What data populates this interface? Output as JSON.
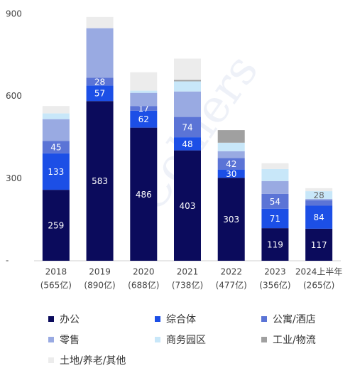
{
  "chart_data": {
    "type": "stacked_bar",
    "watermark": "Colliers",
    "categories": [
      "2018",
      "2019",
      "2020",
      "2021",
      "2022",
      "2023",
      "2024上半年"
    ],
    "category_notes": [
      "(565亿)",
      "(890亿)",
      "(688亿)",
      "(738亿)",
      "(477亿)",
      "(356亿)",
      "(265亿)"
    ],
    "ylim": [
      0,
      900
    ],
    "yticks": [
      {
        "value": 0,
        "label": "-"
      },
      300,
      600,
      900
    ],
    "legend": "bottom",
    "series": [
      {
        "name": "办公",
        "color": "#0b0b5c",
        "values": [
          259,
          583,
          486,
          403,
          303,
          119,
          117
        ],
        "value_labels": [
          "259",
          "583",
          "486",
          "403",
          "303",
          "119",
          "117"
        ]
      },
      {
        "name": "综合体",
        "color": "#1c4fe6",
        "values": [
          133,
          57,
          62,
          48,
          30,
          71,
          84
        ],
        "value_labels": [
          "133",
          "57",
          "62",
          "48",
          "30",
          "71",
          "84"
        ]
      },
      {
        "name": "公寓/酒店",
        "color": "#5b74d6",
        "values": [
          45,
          28,
          17,
          74,
          42,
          54,
          20
        ],
        "value_labels": [
          "45",
          "28",
          "17",
          "74",
          "42",
          "54",
          null
        ]
      },
      {
        "name": "零售",
        "color": "#99aae2",
        "values": [
          80,
          181,
          48,
          93,
          25,
          47,
          5
        ],
        "value_labels": [
          null,
          null,
          null,
          null,
          null,
          null,
          null
        ]
      },
      {
        "name": "商务园区",
        "color": "#c8e7f9",
        "values": [
          21,
          0,
          8,
          37,
          31,
          44,
          28
        ],
        "value_labels": [
          null,
          null,
          null,
          null,
          null,
          null,
          "28"
        ]
      },
      {
        "name": "工业/物流",
        "color": "#a0a0a0",
        "values": [
          0,
          0,
          0,
          5,
          46,
          0,
          0
        ],
        "value_labels": [
          null,
          null,
          null,
          null,
          null,
          null,
          null
        ]
      },
      {
        "name": "土地/养老/其他",
        "color": "#ececec",
        "values": [
          27,
          41,
          67,
          78,
          0,
          21,
          11
        ],
        "value_labels": [
          null,
          null,
          null,
          null,
          null,
          null,
          null
        ]
      }
    ]
  }
}
